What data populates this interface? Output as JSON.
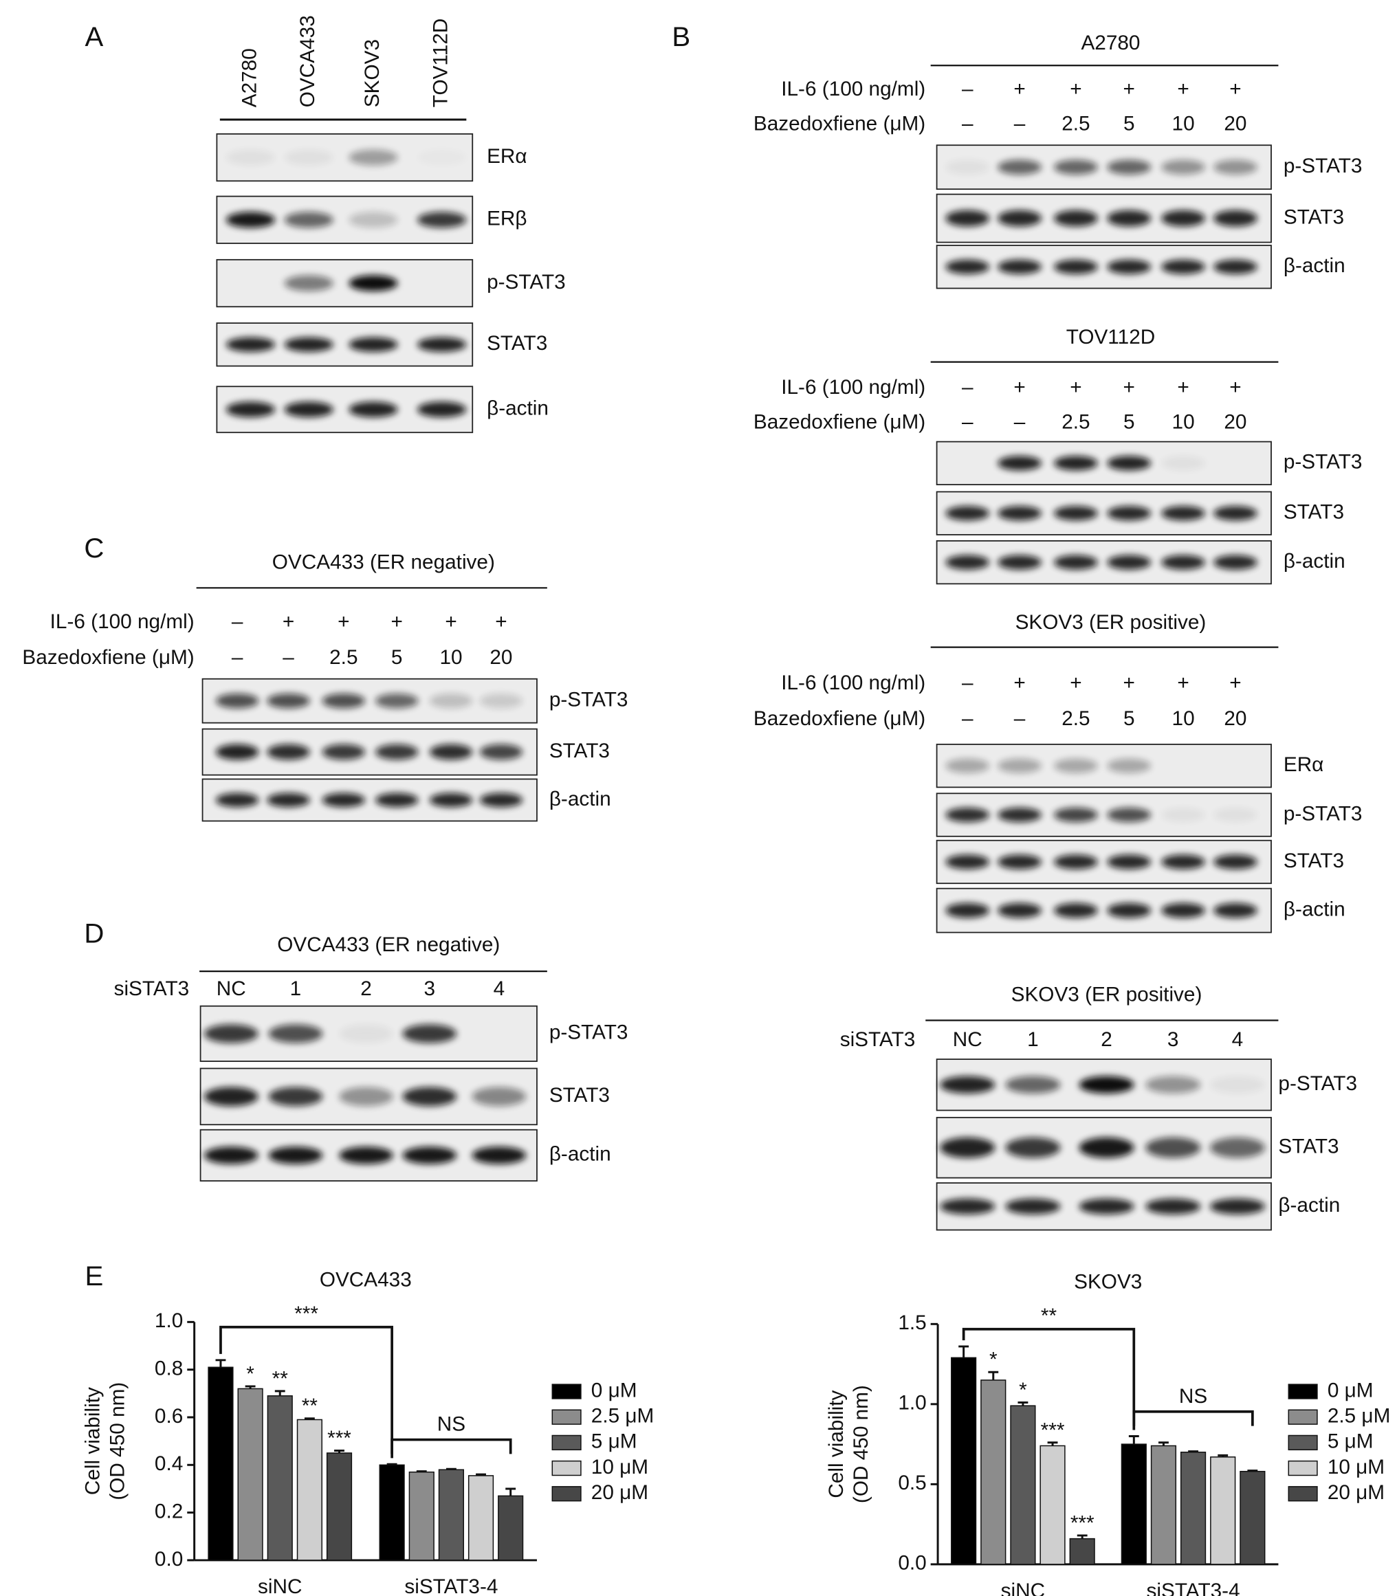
{
  "panel_a": {
    "label": "A",
    "lanes": [
      "A2780",
      "OVCA433",
      "SKOV3",
      "TOV112D"
    ],
    "blots": [
      "ERα",
      "ERβ",
      "p-STAT3",
      "STAT3",
      "β-actin"
    ]
  },
  "panel_b": {
    "label": "B",
    "sections": [
      {
        "title": "A2780",
        "rows": [
          {
            "label": "IL-6 (100 ng/ml)",
            "lanes": [
              "–",
              "+",
              "+",
              "+",
              "+",
              "+"
            ]
          },
          {
            "label": "Bazedoxfiene (μM)",
            "lanes": [
              "–",
              "–",
              "2.5",
              "5",
              "10",
              "20"
            ]
          }
        ],
        "blots": [
          "p-STAT3",
          "STAT3",
          "β-actin"
        ]
      },
      {
        "title": "TOV112D",
        "rows": [
          {
            "label": "IL-6 (100 ng/ml)",
            "lanes": [
              "–",
              "+",
              "+",
              "+",
              "+",
              "+"
            ]
          },
          {
            "label": "Bazedoxfiene (μM)",
            "lanes": [
              "–",
              "–",
              "2.5",
              "5",
              "10",
              "20"
            ]
          }
        ],
        "blots": [
          "p-STAT3",
          "STAT3",
          "β-actin"
        ]
      },
      {
        "title": "SKOV3 (ER positive)",
        "rows": [
          {
            "label": "IL-6 (100 ng/ml)",
            "lanes": [
              "–",
              "+",
              "+",
              "+",
              "+",
              "+"
            ]
          },
          {
            "label": "Bazedoxfiene (μM)",
            "lanes": [
              "–",
              "–",
              "2.5",
              "5",
              "10",
              "20"
            ]
          }
        ],
        "blots": [
          "ERα",
          "p-STAT3",
          "STAT3",
          "β-actin"
        ]
      },
      {
        "title": "SKOV3 (ER positive)",
        "rows": [
          {
            "label": "siSTAT3",
            "lanes": [
              "NC",
              "1",
              "2",
              "3",
              "4"
            ]
          }
        ],
        "blots": [
          "p-STAT3",
          "STAT3",
          "β-actin"
        ]
      }
    ]
  },
  "panel_c": {
    "label": "C",
    "sections": [
      {
        "title": "OVCA433 (ER negative)",
        "rows": [
          {
            "label": "IL-6 (100 ng/ml)",
            "lanes": [
              "–",
              "+",
              "+",
              "+",
              "+",
              "+"
            ]
          },
          {
            "label": "Bazedoxfiene (μM)",
            "lanes": [
              "–",
              "–",
              "2.5",
              "5",
              "10",
              "20"
            ]
          }
        ],
        "blots": [
          "p-STAT3",
          "STAT3",
          "β-actin"
        ]
      }
    ]
  },
  "panel_d": {
    "label": "D",
    "sections": [
      {
        "title": "OVCA433 (ER negative)",
        "rows": [
          {
            "label": "siSTAT3",
            "lanes": [
              "NC",
              "1",
              "2",
              "3",
              "4"
            ]
          }
        ],
        "blots": [
          "p-STAT3",
          "STAT3",
          "β-actin"
        ]
      }
    ]
  },
  "panel_e": {
    "label": "E"
  },
  "chart_data": [
    {
      "type": "bar",
      "title": "OVCA433",
      "y_label": [
        "Cell viability",
        "(OD 450 nm)"
      ],
      "categories": [
        "siNC",
        "siSTAT3-4"
      ],
      "ylim": [
        0,
        1.0
      ],
      "yticks": [
        {
          "value": 0,
          "label": "0.0"
        },
        0.2,
        0.4,
        0.6,
        0.8,
        {
          "value": 1.0,
          "label": "1.0"
        }
      ],
      "comparison_label": "***",
      "ns_label": "NS",
      "series": [
        {
          "name": "0 μM",
          "color": "#000000",
          "values": [
            0.81,
            0.4
          ],
          "errors": [
            0.03,
            0.003
          ]
        },
        {
          "name": "2.5 μM",
          "color": "#8c8c8c",
          "values": [
            0.72,
            0.37
          ],
          "errors": [
            0.01,
            0.003
          ],
          "annotations": [
            "*",
            null
          ]
        },
        {
          "name": "5 μM",
          "color": "#5a5a5a",
          "values": [
            0.69,
            0.38
          ],
          "errors": [
            0.02,
            0.003
          ],
          "annotations": [
            "**",
            null
          ]
        },
        {
          "name": "10 μM",
          "color": "#cfcfcf",
          "values": [
            0.59,
            0.355
          ],
          "errors": [
            0.005,
            0.005
          ],
          "annotations": [
            "**",
            null
          ]
        },
        {
          "name": "20 μM",
          "color": "#474747",
          "values": [
            0.45,
            0.27
          ],
          "errors": [
            0.01,
            0.03
          ],
          "annotations": [
            "***",
            null
          ]
        }
      ]
    },
    {
      "type": "bar",
      "title": "SKOV3",
      "y_label": [
        "Cell viability",
        "(OD 450 nm)"
      ],
      "categories": [
        "siNC",
        "siSTAT3-4"
      ],
      "ylim": [
        0,
        1.5
      ],
      "yticks": [
        {
          "value": 0,
          "label": "0.0"
        },
        0.5,
        {
          "value": 1.0,
          "label": "1.0"
        },
        1.5
      ],
      "comparison_label": "**",
      "ns_label": "NS",
      "series": [
        {
          "name": "0 μM",
          "color": "#000000",
          "values": [
            1.29,
            0.75
          ],
          "errors": [
            0.07,
            0.05
          ]
        },
        {
          "name": "2.5 μM",
          "color": "#8c8c8c",
          "values": [
            1.15,
            0.74
          ],
          "errors": [
            0.05,
            0.02
          ],
          "annotations": [
            "*",
            null
          ]
        },
        {
          "name": "5 μM",
          "color": "#5a5a5a",
          "values": [
            0.99,
            0.7
          ],
          "errors": [
            0.02,
            0.005
          ],
          "annotations": [
            "*",
            null
          ]
        },
        {
          "name": "10 μM",
          "color": "#cfcfcf",
          "values": [
            0.74,
            0.67
          ],
          "errors": [
            0.02,
            0.01
          ],
          "annotations": [
            "***",
            null
          ]
        },
        {
          "name": "20 μM",
          "color": "#474747",
          "values": [
            0.16,
            0.58
          ],
          "errors": [
            0.02,
            0.005
          ],
          "annotations": [
            "***",
            null
          ]
        }
      ]
    }
  ]
}
